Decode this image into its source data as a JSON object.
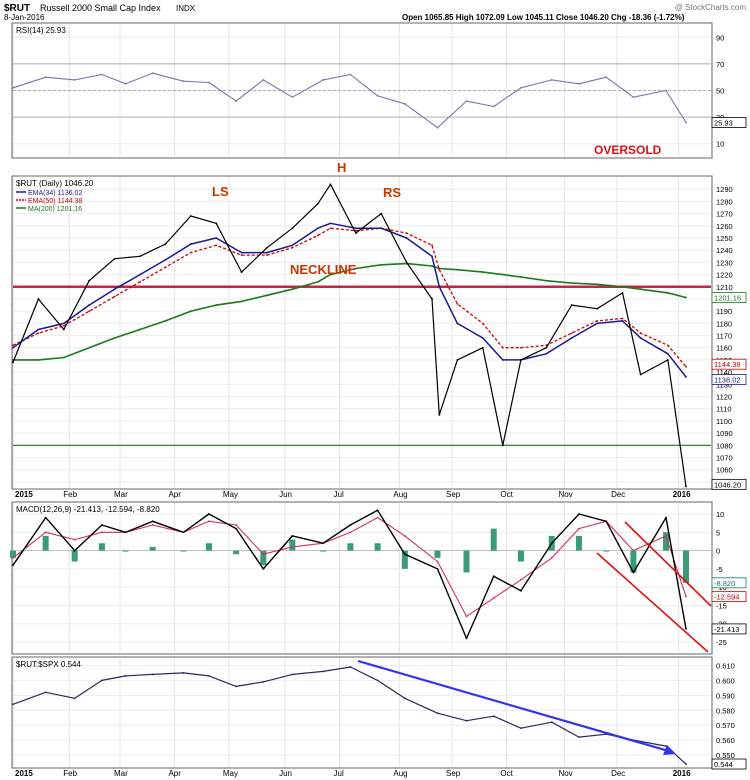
{
  "header": {
    "symbol": "$RUT",
    "name": "Russell 2000 Small Cap Index",
    "exchange": "INDX",
    "date": "8-Jan-2016",
    "watermark": "@ StockCharts.com",
    "quote": "Open 1065.85  High 1072.09  Low 1045.11  Close 1046.20  Chg -18.36 (-1.72%)",
    "quote_chg_color": "#cc0000"
  },
  "rsi_panel": {
    "label": "RSI(14) 25.93",
    "ticks": [
      90,
      70,
      50,
      30,
      10
    ],
    "last_value_label": "25.93",
    "annotation": "OVERSOLD"
  },
  "price_panel": {
    "label": "$RUT (Daily) 1046.20",
    "legend": [
      {
        "text": "EMA(34) 1136.02",
        "color": "#1a1a8c"
      },
      {
        "text": "EMA(50) 1144.38",
        "color": "#cc0000"
      },
      {
        "text": "MA(200) 1201.16",
        "color": "#1a7a1a"
      }
    ],
    "annotations": {
      "ls": "LS",
      "h": "H",
      "rs": "RS",
      "neckline": "NECKLINE"
    },
    "ticks": [
      1290,
      1280,
      1270,
      1260,
      1250,
      1240,
      1230,
      1220,
      1210,
      1200,
      1190,
      1180,
      1170,
      1160,
      1150,
      1140,
      1130,
      1120,
      1110,
      1100,
      1090,
      1080,
      1070,
      1060,
      1050
    ],
    "tags": [
      {
        "text": "1201.16",
        "color": "#1a7a1a"
      },
      {
        "text": "1144.38",
        "color": "#cc0000"
      },
      {
        "text": "1136.02",
        "color": "#1a1a8c"
      },
      {
        "text": "1046.20",
        "color": "#000000"
      }
    ],
    "month_labels": [
      "2015",
      "Feb",
      "Mar",
      "Apr",
      "May",
      "Jun",
      "Jul",
      "Aug",
      "Sep",
      "Oct",
      "Nov",
      "Dec",
      "2016"
    ]
  },
  "macd_panel": {
    "label": "MACD(12,26,9) -21.413, -12.594, -8.820",
    "ticks": [
      10,
      5,
      0,
      -5,
      -10,
      -15,
      -20,
      -25
    ],
    "tags": [
      {
        "text": "-8.820",
        "color": "#1a7a5a"
      },
      {
        "text": "-12.594",
        "color": "#cc0000"
      },
      {
        "text": "-21.413",
        "color": "#000000"
      }
    ]
  },
  "ratio_panel": {
    "label": "$RUT:$SPX 0.544",
    "ticks": [
      "0.610",
      "0.600",
      "0.590",
      "0.580",
      "0.570",
      "0.560",
      "0.550"
    ],
    "last_value_label": "0.544"
  },
  "month_labels": [
    "2015",
    "Feb",
    "Mar",
    "Apr",
    "May",
    "Jun",
    "Jul",
    "Aug",
    "Sep",
    "Oct",
    "Nov",
    "Dec",
    "2016"
  ],
  "colors": {
    "price_line": "#000000",
    "ema34": "#1a1a8c",
    "ema50": "#cc0000",
    "ma200": "#1a7a1a",
    "neckline": "#cc2244",
    "support": "#1a7a1a",
    "macd_line": "#000000",
    "signal_line": "#cc3355",
    "histogram": "#3a9a7a",
    "trend_red": "#dd1111",
    "ratio_line": "#2a2a5a",
    "ratio_arrow": "#3333ee",
    "rsi_line": "#7777aa",
    "annotation_orange": "#cc3300",
    "oversold_red": "#dd1111"
  },
  "chart_data": [
    {
      "type": "line",
      "title": "RSI(14)",
      "ylim": [
        0,
        100
      ],
      "x": [
        "2015-01-02",
        "2015-01-20",
        "2015-02-05",
        "2015-02-20",
        "2015-03-05",
        "2015-03-20",
        "2015-04-06",
        "2015-04-20",
        "2015-05-05",
        "2015-05-20",
        "2015-06-05",
        "2015-06-22",
        "2015-07-07",
        "2015-07-22",
        "2015-08-06",
        "2015-08-24",
        "2015-09-09",
        "2015-09-24",
        "2015-10-09",
        "2015-10-26",
        "2015-11-10",
        "2015-11-25",
        "2015-12-10",
        "2015-12-28",
        "2016-01-08"
      ],
      "series": [
        {
          "name": "RSI(14)",
          "values": [
            52,
            60,
            58,
            62,
            55,
            63,
            57,
            56,
            42,
            58,
            45,
            58,
            62,
            46,
            40,
            22,
            42,
            38,
            52,
            58,
            55,
            60,
            45,
            50,
            25.93
          ]
        }
      ],
      "reference_lines": [
        70,
        50,
        30
      ]
    },
    {
      "type": "line",
      "title": "$RUT (Daily)",
      "ylim": [
        1045,
        1300
      ],
      "x": [
        "2015-01-02",
        "2015-01-16",
        "2015-01-30",
        "2015-02-13",
        "2015-02-27",
        "2015-03-13",
        "2015-03-27",
        "2015-04-10",
        "2015-04-24",
        "2015-05-08",
        "2015-05-22",
        "2015-06-05",
        "2015-06-19",
        "2015-06-26",
        "2015-07-10",
        "2015-07-24",
        "2015-08-07",
        "2015-08-21",
        "2015-08-25",
        "2015-09-04",
        "2015-09-18",
        "2015-09-29",
        "2015-10-09",
        "2015-10-23",
        "2015-11-06",
        "2015-11-20",
        "2015-12-04",
        "2015-12-14",
        "2015-12-29",
        "2016-01-08"
      ],
      "series": [
        {
          "name": "$RUT",
          "values": [
            1148,
            1200,
            1175,
            1215,
            1233,
            1235,
            1245,
            1268,
            1262,
            1222,
            1242,
            1258,
            1278,
            1294,
            1254,
            1270,
            1230,
            1200,
            1105,
            1150,
            1160,
            1080,
            1150,
            1160,
            1195,
            1192,
            1205,
            1138,
            1150,
            1046.2
          ]
        },
        {
          "name": "EMA(34)",
          "values": [
            1160,
            1175,
            1180,
            1195,
            1208,
            1220,
            1232,
            1245,
            1250,
            1238,
            1238,
            1244,
            1258,
            1262,
            1258,
            1258,
            1250,
            1235,
            1210,
            1180,
            1168,
            1150,
            1150,
            1155,
            1168,
            1180,
            1182,
            1168,
            1155,
            1136.02
          ]
        },
        {
          "name": "EMA(50)",
          "values": [
            1162,
            1172,
            1178,
            1190,
            1202,
            1214,
            1226,
            1238,
            1244,
            1236,
            1236,
            1242,
            1252,
            1258,
            1256,
            1258,
            1254,
            1244,
            1224,
            1196,
            1180,
            1160,
            1160,
            1162,
            1172,
            1182,
            1184,
            1172,
            1162,
            1144.38
          ]
        },
        {
          "name": "MA(200)",
          "values": [
            1150,
            1150,
            1152,
            1160,
            1168,
            1175,
            1182,
            1190,
            1195,
            1198,
            1203,
            1208,
            1214,
            1220,
            1225,
            1228,
            1229,
            1227,
            1225,
            1224,
            1222,
            1220,
            1218,
            1215,
            1213,
            1212,
            1210,
            1208,
            1205,
            1201.16
          ]
        }
      ],
      "reference_lines": [
        1210,
        1080
      ]
    },
    {
      "type": "line",
      "title": "MACD(12,26,9)",
      "ylim": [
        -28,
        13
      ],
      "x": [
        "2015-01-02",
        "2015-01-20",
        "2015-02-05",
        "2015-02-20",
        "2015-03-05",
        "2015-03-20",
        "2015-04-06",
        "2015-04-20",
        "2015-05-05",
        "2015-05-20",
        "2015-06-05",
        "2015-06-22",
        "2015-07-07",
        "2015-07-22",
        "2015-08-06",
        "2015-08-24",
        "2015-09-09",
        "2015-09-24",
        "2015-10-09",
        "2015-10-26",
        "2015-11-10",
        "2015-11-25",
        "2015-12-10",
        "2015-12-28",
        "2016-01-08"
      ],
      "series": [
        {
          "name": "MACD",
          "values": [
            -4,
            9,
            0,
            7,
            5,
            8,
            5,
            10,
            6,
            -5,
            4,
            2,
            7,
            11,
            -1,
            -5,
            -24,
            -7,
            -11,
            2,
            10,
            8,
            -6,
            9,
            -21.413
          ]
        },
        {
          "name": "Signal",
          "values": [
            -2,
            5,
            3,
            5,
            5,
            7,
            5,
            8,
            7,
            -1,
            1,
            2,
            5,
            9,
            4,
            -3,
            -18,
            -13,
            -8,
            -2,
            6,
            8,
            0,
            4,
            -12.594
          ]
        },
        {
          "name": "Histogram",
          "values": [
            -2,
            4,
            -3,
            2,
            0,
            1,
            0,
            2,
            -1,
            -4,
            3,
            0,
            2,
            2,
            -5,
            -2,
            -6,
            6,
            -3,
            4,
            4,
            0,
            -6,
            5,
            -8.82
          ]
        }
      ]
    },
    {
      "type": "line",
      "title": "$RUT:$SPX",
      "ylim": [
        0.542,
        0.615
      ],
      "x": [
        "2015-01-02",
        "2015-01-20",
        "2015-02-05",
        "2015-02-20",
        "2015-03-05",
        "2015-03-20",
        "2015-04-06",
        "2015-04-20",
        "2015-05-05",
        "2015-05-20",
        "2015-06-05",
        "2015-06-22",
        "2015-07-07",
        "2015-07-22",
        "2015-08-06",
        "2015-08-24",
        "2015-09-09",
        "2015-09-24",
        "2015-10-09",
        "2015-10-26",
        "2015-11-10",
        "2015-11-25",
        "2015-12-10",
        "2015-12-28",
        "2016-01-08"
      ],
      "series": [
        {
          "name": "$RUT:$SPX",
          "values": [
            0.584,
            0.592,
            0.588,
            0.6,
            0.603,
            0.604,
            0.605,
            0.603,
            0.596,
            0.599,
            0.604,
            0.606,
            0.609,
            0.6,
            0.588,
            0.578,
            0.573,
            0.576,
            0.568,
            0.572,
            0.562,
            0.564,
            0.56,
            0.556,
            0.544
          ]
        }
      ]
    }
  ]
}
